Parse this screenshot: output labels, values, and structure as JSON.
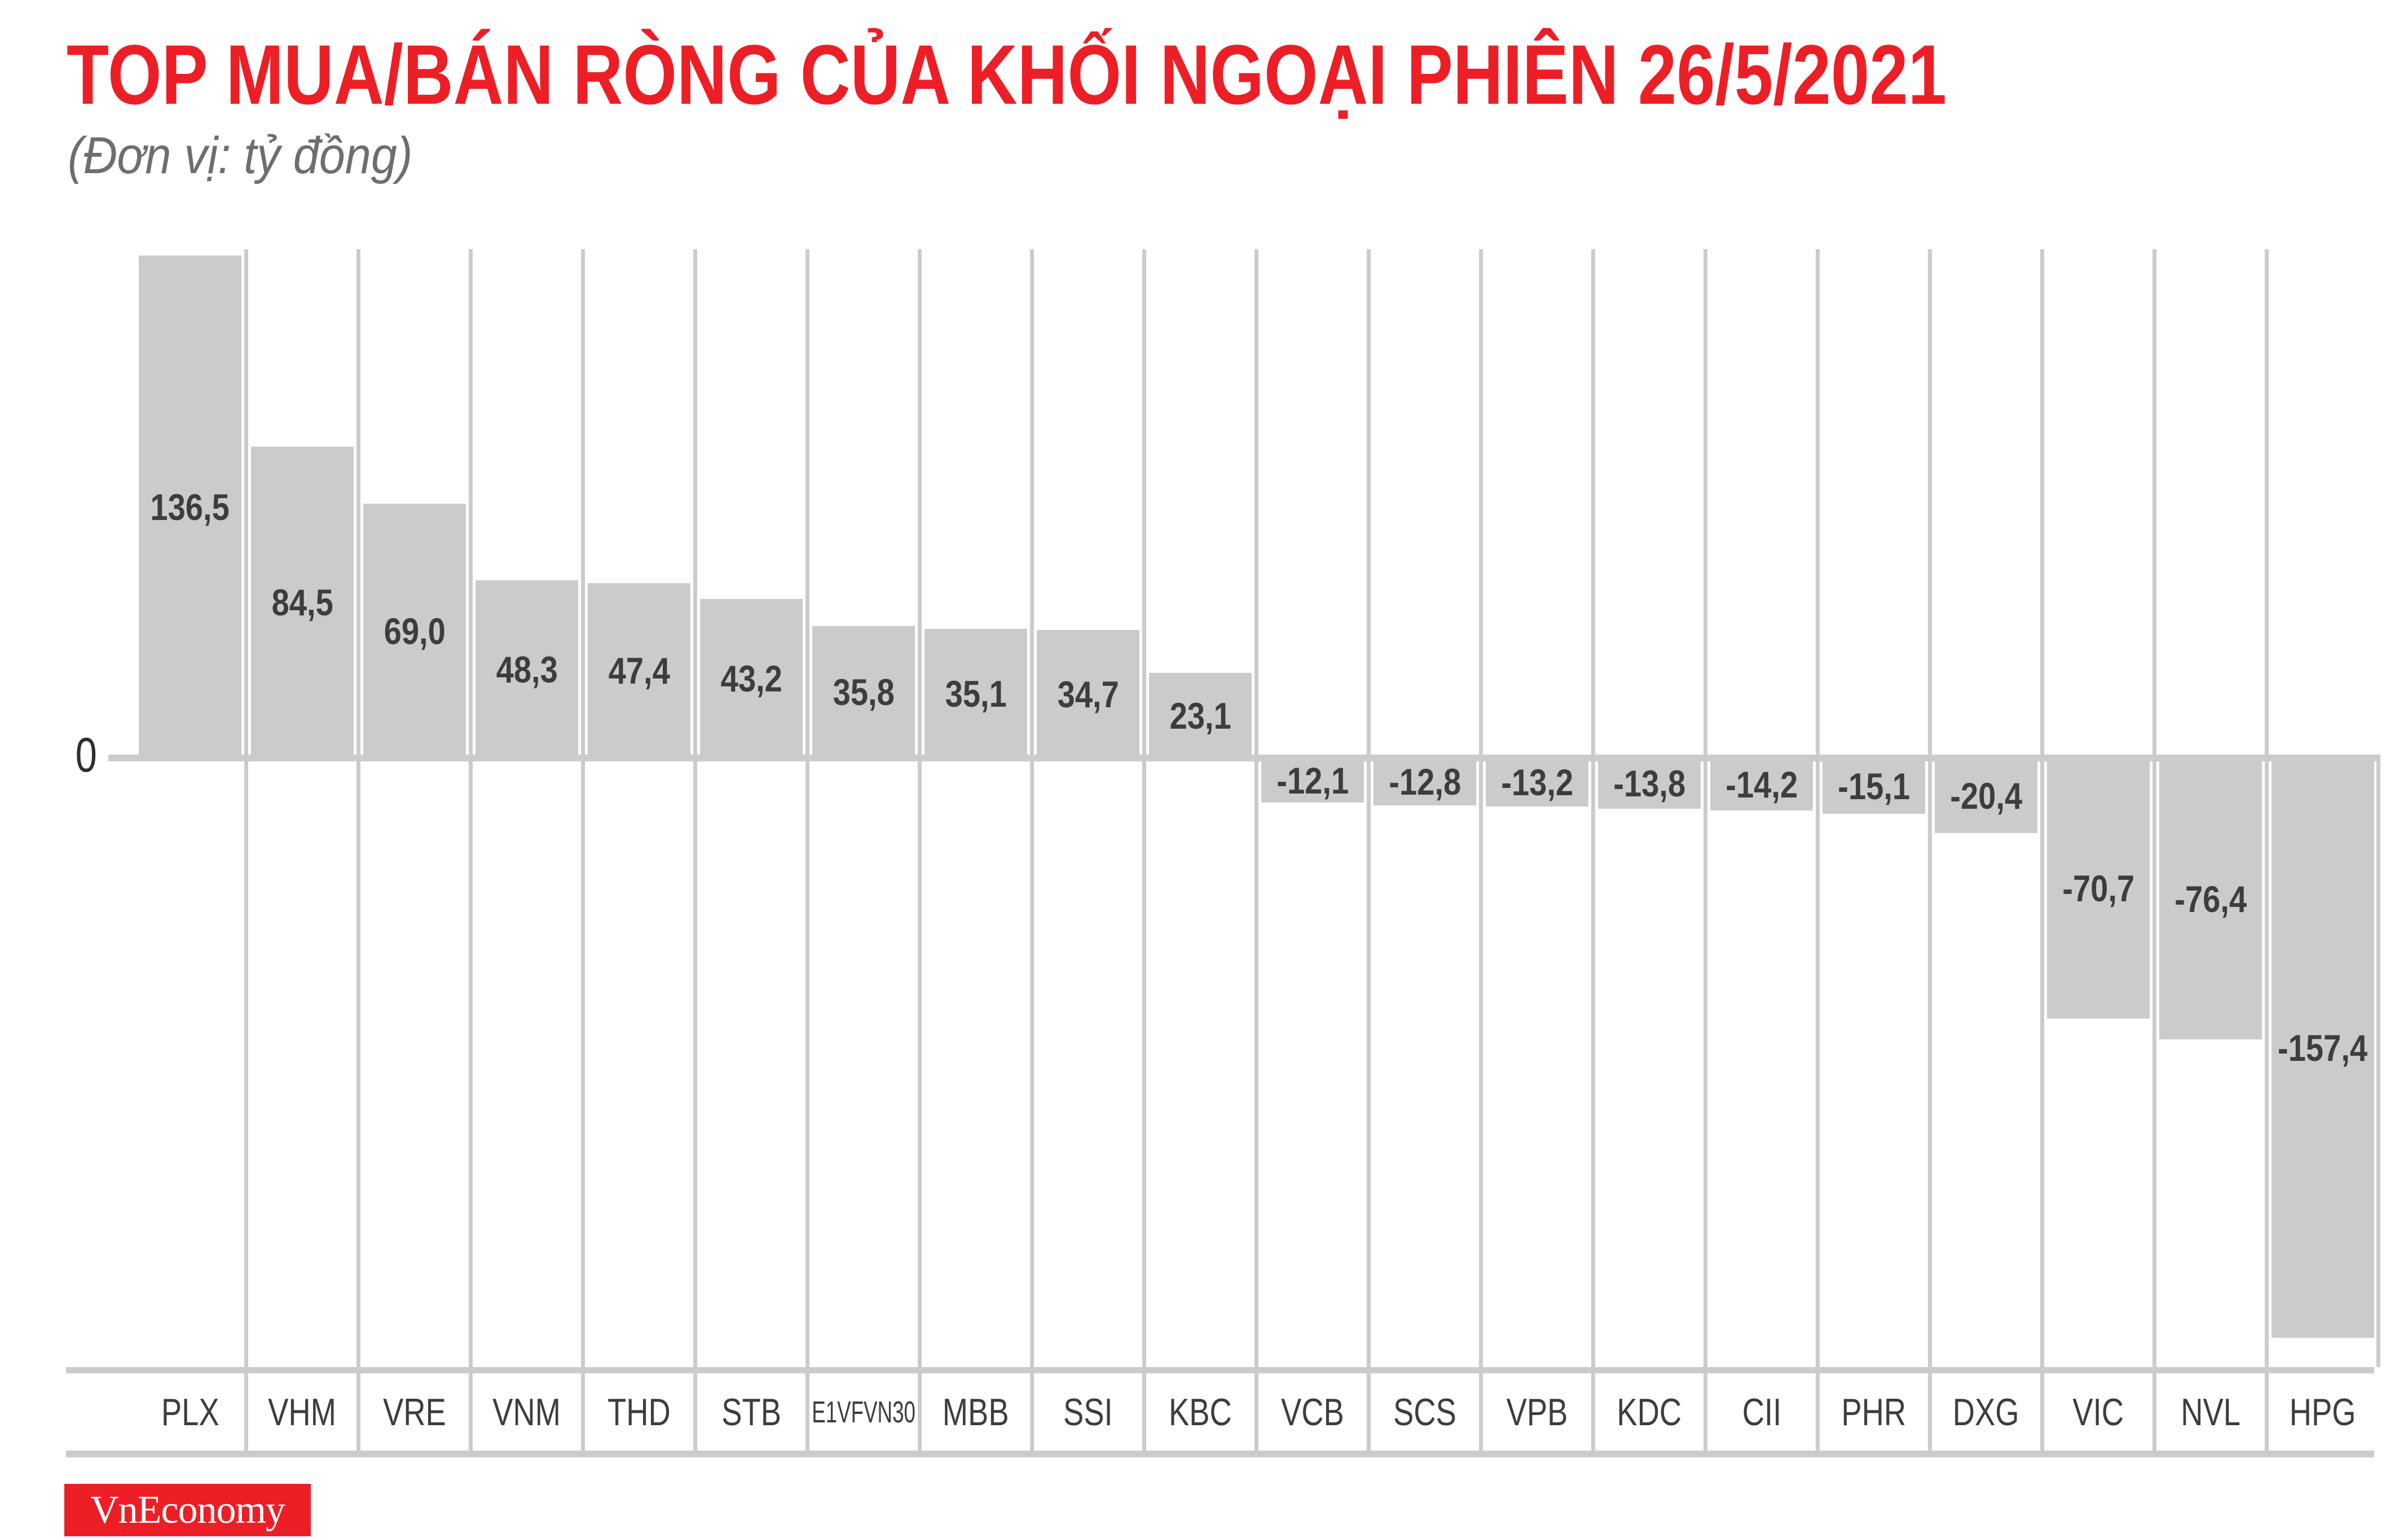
{
  "title": "TOP MUA/BÁN RÒNG CỦA KHỐI NGOẠI PHIÊN 26/5/2021",
  "subtitle": "(Đơn vị: tỷ đồng)",
  "zero_label": "0",
  "logo_text": "VnEconomy",
  "colors": {
    "accent_red": "#ec1f26",
    "bar_gray": "#cbcbcb",
    "value_text": "#3d3d3d",
    "subtitle_gray": "#6e6e6e"
  },
  "chart_data": {
    "type": "bar",
    "orientation": "vertical-columns",
    "title": "TOP MUA/BÁN RÒNG CỦA KHỐI NGOẠI PHIÊN 26/5/2021",
    "unit": "tỷ đồng",
    "baseline": 0,
    "legend": "none",
    "grid": "vertical category separators",
    "categories": [
      "PLX",
      "VHM",
      "VRE",
      "VNM",
      "THD",
      "STB",
      "E1VFVN30",
      "MBB",
      "SSI",
      "KBC",
      "VCB",
      "SCS",
      "VPB",
      "KDC",
      "CII",
      "PHR",
      "DXG",
      "VIC",
      "NVL",
      "HPG"
    ],
    "values": [
      136.5,
      84.5,
      69.0,
      48.3,
      47.4,
      43.2,
      35.8,
      35.1,
      34.7,
      23.1,
      -12.1,
      -12.8,
      -13.2,
      -13.8,
      -14.2,
      -15.1,
      -20.4,
      -70.7,
      -76.4,
      -157.4
    ],
    "value_labels": [
      "136,5",
      "84,5",
      "69,0",
      "48,3",
      "47,4",
      "43,2",
      "35,8",
      "35,1",
      "34,7",
      "23,1",
      "-12,1",
      "-12,8",
      "-13,2",
      "-13,8",
      "-14,2",
      "-15,1",
      "-20,4",
      "-70,7",
      "-76,4",
      "-157,4"
    ],
    "ylim": [
      -160,
      140
    ]
  }
}
